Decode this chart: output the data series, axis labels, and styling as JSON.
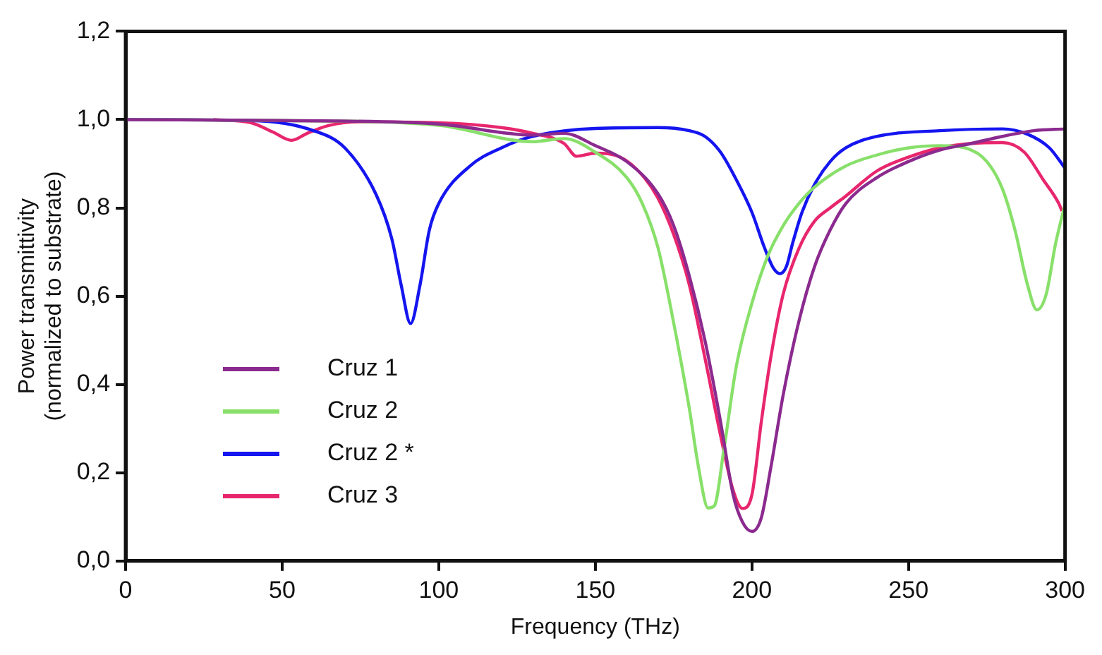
{
  "chart_data": {
    "type": "line",
    "xlabel": "Frequency (THz)",
    "ylabel": "Power transmittivity\n(normalized to substrate)",
    "xlim": [
      0,
      300
    ],
    "xticks": [
      0,
      50,
      100,
      150,
      200,
      250,
      300
    ],
    "ylim": [
      0,
      1.2
    ],
    "yticks": [
      {
        "value": 0,
        "label": "0,0"
      },
      {
        "value": 0.2,
        "label": "0,2"
      },
      {
        "value": 0.4,
        "label": "0,4"
      },
      {
        "value": 0.6,
        "label": "0,6"
      },
      {
        "value": 0.8,
        "label": "0,8"
      },
      {
        "value": 1,
        "label": "1,0"
      },
      {
        "value": 1.2,
        "label": "1,2"
      }
    ],
    "grid": false,
    "legend": "bottom left",
    "marker": "none",
    "line_style": "solid",
    "series": [
      {
        "name": "Cruz 1",
        "color": "#8b2a8f",
        "x": [
          0,
          50,
          100,
          130,
          140,
          150,
          160,
          170,
          175,
          180,
          185,
          190,
          194,
          197,
          200,
          203,
          206,
          210,
          215,
          220,
          225,
          230,
          240,
          250,
          260,
          270,
          280,
          290,
          300
        ],
        "values": [
          1.0,
          0.998,
          0.99,
          0.965,
          0.969,
          0.941,
          0.905,
          0.832,
          0.76,
          0.646,
          0.5,
          0.315,
          0.15,
          0.088,
          0.067,
          0.098,
          0.21,
          0.377,
          0.543,
          0.667,
          0.75,
          0.81,
          0.869,
          0.905,
          0.931,
          0.946,
          0.962,
          0.975,
          0.979
        ]
      },
      {
        "name": "Cruz 2",
        "color": "#88e06a",
        "x": [
          0,
          50,
          100,
          130,
          140,
          150,
          160,
          165,
          170,
          175,
          180,
          183,
          186,
          188,
          191,
          195,
          200,
          205,
          210,
          215,
          220,
          230,
          240,
          250,
          260,
          268,
          275,
          280,
          284,
          288,
          291,
          294,
          297,
          300
        ],
        "values": [
          1.0,
          0.998,
          0.987,
          0.95,
          0.957,
          0.926,
          0.869,
          0.81,
          0.71,
          0.54,
          0.346,
          0.21,
          0.12,
          0.125,
          0.25,
          0.44,
          0.584,
          0.69,
          0.76,
          0.81,
          0.847,
          0.895,
          0.92,
          0.936,
          0.941,
          0.936,
          0.905,
          0.843,
          0.75,
          0.626,
          0.569,
          0.605,
          0.72,
          0.808
        ]
      },
      {
        "name": "Cruz 2 *",
        "color": "#1515f0",
        "x": [
          0,
          40,
          60,
          70,
          80,
          85,
          88,
          91,
          94,
          97,
          100,
          110,
          120,
          130,
          150,
          170,
          180,
          185,
          190,
          195,
          200,
          204,
          207,
          209,
          211,
          213,
          216,
          220,
          225,
          230,
          240,
          260,
          280,
          288,
          295,
          300
        ],
        "values": [
          1.0,
          0.998,
          0.975,
          0.936,
          0.83,
          0.73,
          0.625,
          0.538,
          0.625,
          0.75,
          0.81,
          0.895,
          0.936,
          0.962,
          0.98,
          0.982,
          0.975,
          0.962,
          0.926,
          0.864,
          0.79,
          0.71,
          0.662,
          0.651,
          0.667,
          0.72,
          0.79,
          0.853,
          0.905,
          0.936,
          0.962,
          0.975,
          0.979,
          0.967,
          0.936,
          0.89
        ]
      },
      {
        "name": "Cruz 3",
        "color": "#e8266e",
        "x": [
          28,
          40,
          47,
          53,
          58,
          65,
          75,
          100,
          120,
          130,
          140,
          144,
          150,
          158,
          165,
          170,
          175,
          180,
          185,
          190,
          194,
          197,
          200,
          203,
          206,
          210,
          215,
          220,
          225,
          230,
          240,
          250,
          260,
          270,
          280,
          287,
          293,
          298,
          299
        ],
        "values": [
          1.0,
          0.993,
          0.972,
          0.953,
          0.969,
          0.987,
          0.995,
          0.993,
          0.982,
          0.969,
          0.946,
          0.917,
          0.924,
          0.915,
          0.874,
          0.822,
          0.74,
          0.626,
          0.46,
          0.284,
          0.16,
          0.119,
          0.15,
          0.315,
          0.46,
          0.605,
          0.708,
          0.77,
          0.8,
          0.827,
          0.884,
          0.915,
          0.936,
          0.946,
          0.948,
          0.926,
          0.864,
          0.81,
          0.793
        ]
      }
    ]
  }
}
